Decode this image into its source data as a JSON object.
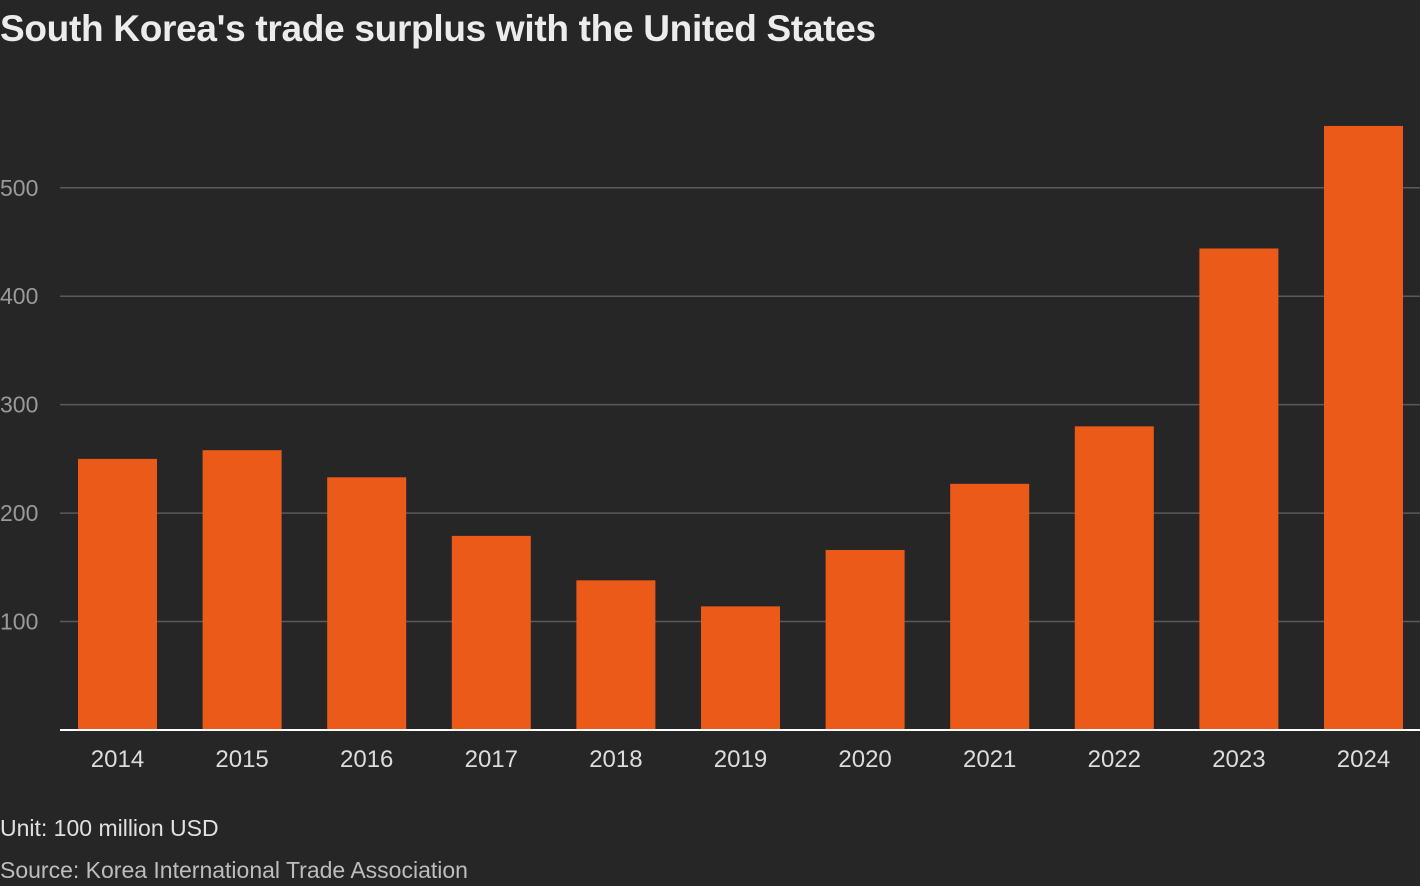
{
  "chart_data": {
    "type": "bar",
    "title": "South Korea's trade surplus with the United States",
    "categories": [
      "2014",
      "2015",
      "2016",
      "2017",
      "2018",
      "2019",
      "2020",
      "2021",
      "2022",
      "2023",
      "2024"
    ],
    "values": [
      250,
      258,
      233,
      179,
      138,
      114,
      166,
      227,
      280,
      444,
      557
    ],
    "y_ticks": [
      100,
      200,
      300,
      400,
      500
    ],
    "ylim": [
      0,
      565
    ],
    "xlabel": "",
    "ylabel": "",
    "grid": true,
    "unit_note": "Unit: 100 million USD",
    "source": "Source: Korea International Trade Association",
    "colors": {
      "bar": "#ec5a19",
      "background": "#262626",
      "grid": "#5a5a5a",
      "baseline": "#ffffff",
      "tick_label": "#9a9a9a",
      "category_label": "#dcdcdc"
    }
  }
}
